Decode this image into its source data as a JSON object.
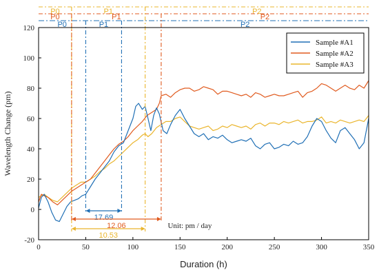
{
  "colors": {
    "A1": "#1f6fb5",
    "A2": "#e05a1e",
    "A3": "#eab52c",
    "axis": "#000000"
  },
  "chart_data": {
    "type": "line",
    "xlabel": "Duration (h)",
    "ylabel": "Wavelength Change (pm)",
    "xlim": [
      0,
      350
    ],
    "ylim": [
      -20,
      120
    ],
    "xticks": [
      0,
      50,
      100,
      150,
      200,
      250,
      300,
      350
    ],
    "yticks": [
      -20,
      0,
      20,
      40,
      60,
      80,
      100,
      120
    ],
    "grid": false,
    "legend_position": "top-right",
    "series": [
      {
        "name": "Sample #A1",
        "color": "#1f6fb5",
        "x": [
          0,
          3,
          6,
          10,
          14,
          18,
          22,
          26,
          30,
          34,
          38,
          42,
          46,
          50,
          55,
          60,
          65,
          70,
          75,
          80,
          85,
          90,
          95,
          100,
          103,
          106,
          110,
          113,
          116,
          119,
          122,
          125,
          128,
          132,
          136,
          140,
          145,
          150,
          155,
          160,
          165,
          170,
          175,
          180,
          185,
          190,
          195,
          200,
          205,
          210,
          215,
          220,
          225,
          230,
          235,
          240,
          245,
          250,
          255,
          260,
          265,
          270,
          275,
          280,
          285,
          290,
          295,
          300,
          305,
          310,
          315,
          320,
          325,
          330,
          335,
          340,
          345,
          350
        ],
        "y": [
          1,
          8,
          10,
          5,
          -2,
          -7,
          -8,
          -3,
          2,
          5,
          6,
          7,
          9,
          10,
          15,
          20,
          24,
          28,
          32,
          38,
          42,
          44,
          52,
          60,
          68,
          70,
          66,
          68,
          60,
          52,
          62,
          67,
          63,
          52,
          50,
          56,
          62,
          66,
          60,
          55,
          50,
          48,
          50,
          46,
          48,
          47,
          49,
          46,
          44,
          45,
          46,
          45,
          47,
          42,
          40,
          43,
          44,
          40,
          41,
          43,
          42,
          45,
          43,
          44,
          48,
          55,
          60,
          58,
          52,
          47,
          44,
          52,
          54,
          50,
          46,
          40,
          44,
          60
        ]
      },
      {
        "name": "Sample #A2",
        "color": "#e05a1e",
        "x": [
          0,
          3,
          6,
          10,
          15,
          20,
          25,
          30,
          35,
          40,
          45,
          50,
          55,
          60,
          65,
          70,
          75,
          80,
          85,
          90,
          95,
          100,
          105,
          110,
          115,
          120,
          125,
          128,
          130,
          135,
          140,
          145,
          150,
          155,
          160,
          165,
          170,
          175,
          180,
          185,
          190,
          195,
          200,
          205,
          210,
          215,
          220,
          225,
          230,
          235,
          240,
          245,
          250,
          255,
          260,
          265,
          270,
          275,
          280,
          285,
          290,
          295,
          300,
          305,
          310,
          315,
          320,
          325,
          330,
          335,
          340,
          345,
          350
        ],
        "y": [
          5,
          10,
          9,
          8,
          5,
          3,
          6,
          9,
          12,
          14,
          16,
          18,
          20,
          24,
          28,
          32,
          36,
          40,
          43,
          45,
          48,
          52,
          55,
          58,
          62,
          64,
          66,
          70,
          75,
          76,
          74,
          77,
          79,
          80,
          80,
          78,
          79,
          81,
          80,
          79,
          76,
          78,
          78,
          77,
          76,
          75,
          76,
          74,
          77,
          76,
          74,
          75,
          76,
          75,
          75,
          76,
          77,
          78,
          74,
          77,
          78,
          80,
          83,
          82,
          80,
          78,
          80,
          82,
          80,
          79,
          82,
          80,
          85
        ]
      },
      {
        "name": "Sample #A3",
        "color": "#eab52c",
        "x": [
          0,
          3,
          6,
          10,
          15,
          20,
          25,
          30,
          35,
          40,
          45,
          50,
          55,
          60,
          65,
          70,
          75,
          80,
          85,
          90,
          95,
          100,
          105,
          110,
          113,
          116,
          120,
          125,
          130,
          135,
          140,
          145,
          150,
          155,
          160,
          165,
          170,
          175,
          180,
          185,
          190,
          195,
          200,
          205,
          210,
          215,
          220,
          225,
          230,
          235,
          240,
          245,
          250,
          255,
          260,
          265,
          270,
          275,
          280,
          285,
          290,
          295,
          300,
          305,
          310,
          315,
          320,
          325,
          330,
          335,
          340,
          345,
          350
        ],
        "y": [
          8,
          9,
          10,
          8,
          6,
          5,
          8,
          11,
          14,
          16,
          18,
          18,
          20,
          22,
          25,
          27,
          30,
          32,
          35,
          38,
          41,
          44,
          46,
          49,
          50,
          48,
          50,
          54,
          56,
          58,
          58,
          60,
          61,
          58,
          55,
          54,
          53,
          54,
          55,
          52,
          53,
          55,
          54,
          56,
          55,
          54,
          55,
          53,
          56,
          57,
          55,
          57,
          57,
          56,
          58,
          57,
          58,
          59,
          57,
          58,
          58,
          59,
          61,
          57,
          58,
          57,
          59,
          58,
          57,
          58,
          59,
          58,
          62
        ]
      }
    ],
    "phases": {
      "A1": {
        "labels": [
          "P0",
          "P1",
          "P2"
        ],
        "boundaries": [
          50,
          88
        ]
      },
      "A2": {
        "labels": [
          "P0",
          "P1",
          "P2"
        ],
        "boundaries": [
          35,
          130
        ]
      },
      "A3": {
        "labels": [
          "P0",
          "P1",
          "P2"
        ],
        "boundaries": [
          35,
          113
        ]
      }
    },
    "rates": {
      "A1": "17.69",
      "A2": "12.06",
      "A3": "10.53"
    },
    "unit_note": "Unit: pm / day"
  }
}
